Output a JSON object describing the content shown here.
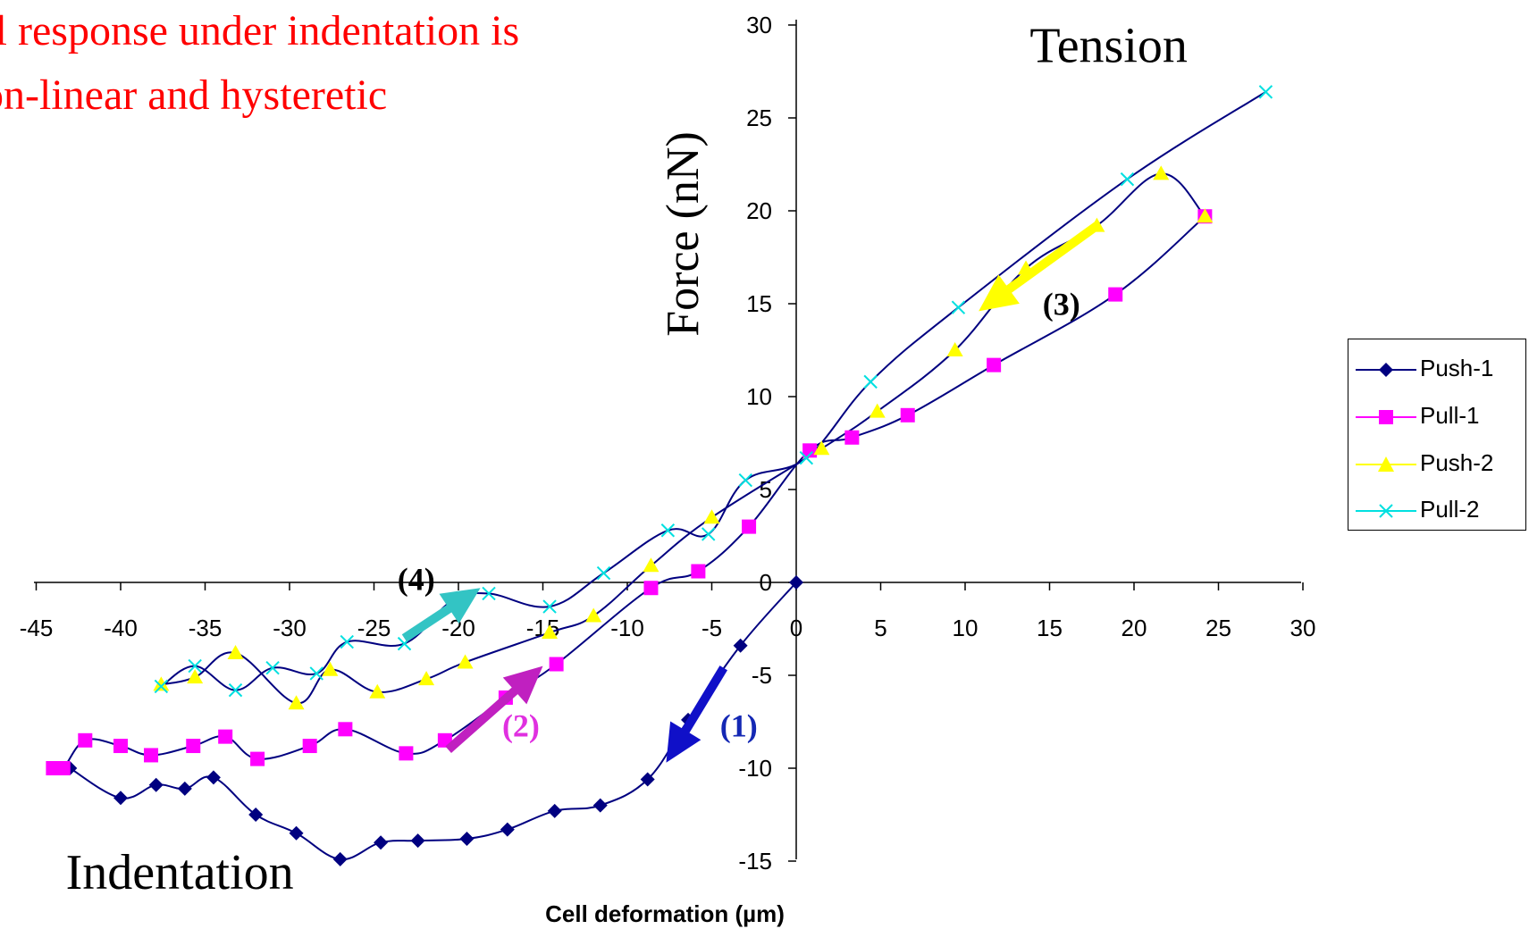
{
  "chart_data": {
    "type": "scatter",
    "headline_lines": [
      "ell response under indentation is",
      "on-linear and hysteretic"
    ],
    "xlabel": "Cell deformation (µm)",
    "ylabel": "Force (nN)",
    "xlim": [
      -45,
      30
    ],
    "ylim": [
      -15,
      30
    ],
    "x_ticks": [
      -45,
      -40,
      -35,
      -30,
      -25,
      -20,
      -15,
      -10,
      -5,
      0,
      5,
      10,
      15,
      20,
      25,
      30
    ],
    "x_tick_labels": [
      "-45",
      "-40",
      "-35",
      "-30",
      "-25",
      "-20",
      "-15",
      "-10",
      "-5",
      "0",
      "5",
      "10",
      "15",
      "20",
      "25",
      "30"
    ],
    "y_ticks": [
      -15,
      -10,
      -5,
      0,
      5,
      10,
      15,
      20,
      25,
      30
    ],
    "y_tick_labels": [
      "-15",
      "-10",
      "-5",
      "0",
      "5",
      "10",
      "15",
      "20",
      "25",
      "30"
    ],
    "legend_position": "right",
    "line_color": "#000080",
    "series": [
      {
        "name": "Push-1",
        "marker": "diamond",
        "color": "#000080",
        "points": [
          [
            0,
            0
          ],
          [
            -3.3,
            -3.4
          ],
          [
            -6.4,
            -7.4
          ],
          [
            -8.8,
            -10.6
          ],
          [
            -11.6,
            -12
          ],
          [
            -14.3,
            -12.3
          ],
          [
            -17.1,
            -13.3
          ],
          [
            -19.5,
            -13.8
          ],
          [
            -22.4,
            -13.9
          ],
          [
            -24.6,
            -14
          ],
          [
            -27,
            -14.9
          ],
          [
            -29.6,
            -13.5
          ],
          [
            -32,
            -12.5
          ],
          [
            -34.5,
            -10.5
          ],
          [
            -36.2,
            -11.1
          ],
          [
            -37.9,
            -10.9
          ],
          [
            -40,
            -11.6
          ],
          [
            -43,
            -10
          ]
        ]
      },
      {
        "name": "Pull-1",
        "marker": "square",
        "color": "#ff00ff",
        "points": [
          [
            24.2,
            19.7
          ],
          [
            18.9,
            15.5
          ],
          [
            11.7,
            11.7
          ],
          [
            6.6,
            9
          ],
          [
            3.3,
            7.8
          ],
          [
            0.8,
            7.1
          ],
          [
            -2.8,
            3
          ],
          [
            -5.8,
            0.6
          ],
          [
            -8.6,
            -0.3
          ],
          [
            -14.2,
            -4.4
          ],
          [
            -17.2,
            -6.2
          ],
          [
            -20.8,
            -8.5
          ],
          [
            -23.1,
            -9.2
          ],
          [
            -26.7,
            -7.9
          ],
          [
            -28.8,
            -8.8
          ],
          [
            -31.9,
            -9.5
          ],
          [
            -33.8,
            -8.3
          ],
          [
            -35.7,
            -8.8
          ],
          [
            -38.2,
            -9.3
          ],
          [
            -40,
            -8.8
          ],
          [
            -42.1,
            -8.5
          ],
          [
            -43.4,
            -10
          ],
          [
            -44,
            -10
          ]
        ]
      },
      {
        "name": "Push-2",
        "marker": "triangle",
        "color": "#ffff00",
        "points": [
          [
            24.2,
            19.7
          ],
          [
            21.6,
            22
          ],
          [
            17.8,
            19.2
          ],
          [
            13.6,
            16.9
          ],
          [
            9.4,
            12.5
          ],
          [
            4.8,
            9.2
          ],
          [
            1.5,
            7.2
          ],
          [
            -5,
            3.5
          ],
          [
            -8.6,
            0.9
          ],
          [
            -12,
            -1.8
          ],
          [
            -14.6,
            -2.7
          ],
          [
            -19.6,
            -4.3
          ],
          [
            -21.9,
            -5.2
          ],
          [
            -24.8,
            -5.9
          ],
          [
            -27.6,
            -4.7
          ],
          [
            -29.6,
            -6.5
          ],
          [
            -33.2,
            -3.8
          ],
          [
            -35.6,
            -5.1
          ],
          [
            -37.6,
            -5.5
          ]
        ]
      },
      {
        "name": "Pull-2",
        "marker": "x",
        "color": "#00e0e0",
        "points": [
          [
            27.8,
            26.4
          ],
          [
            19.6,
            21.7
          ],
          [
            9.6,
            14.8
          ],
          [
            4.4,
            10.8
          ],
          [
            0.6,
            6.7
          ],
          [
            -3,
            5.5
          ],
          [
            -5.2,
            2.6
          ],
          [
            -7.6,
            2.8
          ],
          [
            -11.4,
            0.5
          ],
          [
            -14.6,
            -1.3
          ],
          [
            -18.2,
            -0.6
          ],
          [
            -20.4,
            -1
          ],
          [
            -23.2,
            -3.3
          ],
          [
            -26.6,
            -3.2
          ],
          [
            -28.4,
            -4.9
          ],
          [
            -31,
            -4.6
          ],
          [
            -33.2,
            -5.8
          ],
          [
            -35.6,
            -4.5
          ],
          [
            -37.6,
            -5.6
          ]
        ]
      }
    ],
    "annotations": [
      {
        "text": "Tension",
        "x": 18.5,
        "y": 28
      },
      {
        "text": "Indentation",
        "x": -36.5,
        "y": -16.5
      },
      {
        "text": "(1)",
        "x": -3.4,
        "y": -8.3,
        "color": "#1428b4"
      },
      {
        "text": "(2)",
        "x": -16.3,
        "y": -8.3,
        "color": "#e030e0"
      },
      {
        "text": "(3)",
        "x": 15.7,
        "y": 14.4,
        "color": "#000000"
      },
      {
        "text": "(4)",
        "x": -22.5,
        "y": -0.4,
        "color": "#000000"
      }
    ],
    "arrows": [
      {
        "label": "(1)",
        "color": "#1010c8",
        "from": [
          -4.3,
          -4.6
        ],
        "to": [
          -7.7,
          -9.7
        ]
      },
      {
        "label": "(2)",
        "color": "#c020c0",
        "from": [
          -20.6,
          -9
        ],
        "to": [
          -15,
          -4.5
        ]
      },
      {
        "label": "(3)",
        "color": "#ffff00",
        "from": [
          17.8,
          19.2
        ],
        "to": [
          10.8,
          14.6
        ]
      },
      {
        "label": "(4)",
        "color": "#33c4c4",
        "from": [
          -23.2,
          -3
        ],
        "to": [
          -18.7,
          -0.3
        ]
      }
    ]
  }
}
